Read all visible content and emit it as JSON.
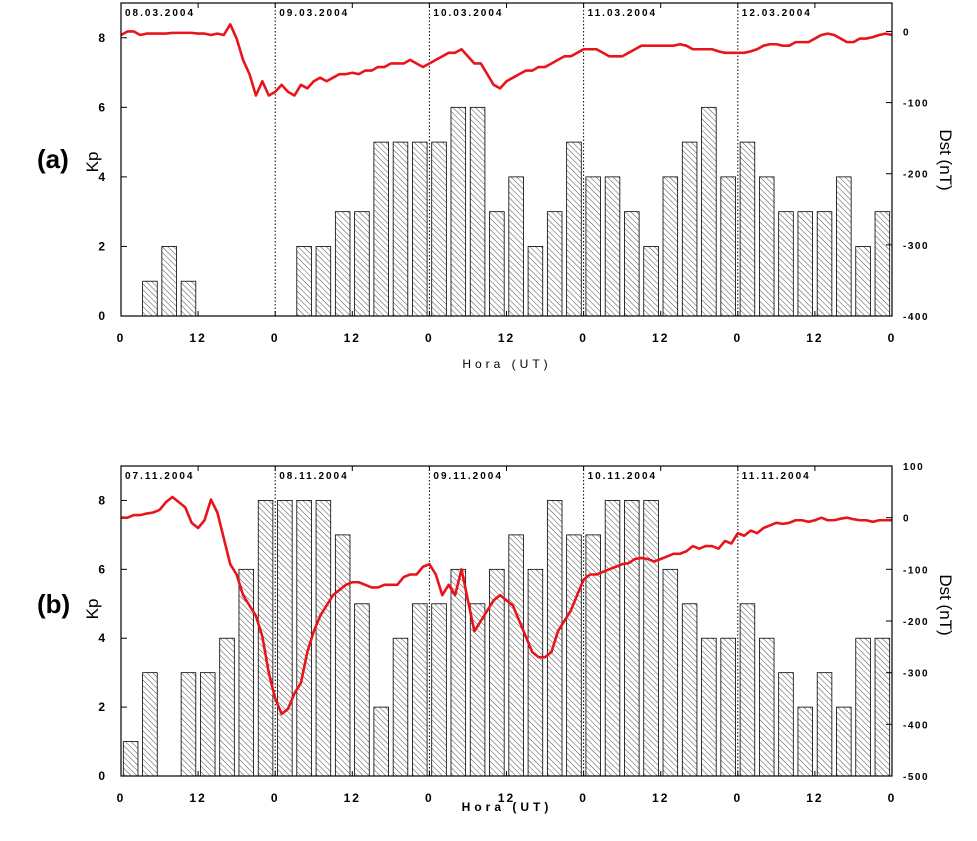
{
  "chart_data": [
    {
      "type": "bar",
      "panel_label": "(a)",
      "ylabel_left": "Kp",
      "ylabel_right": "Dst (nT)",
      "xlabel": "Hora (UT)",
      "x_tick_labels": [
        "0",
        "12",
        "0",
        "12",
        "0",
        "12",
        "0",
        "12",
        "0",
        "12",
        "0"
      ],
      "left_ticks": [
        0,
        2,
        4,
        6,
        8
      ],
      "left_ylim": [
        0,
        9
      ],
      "right_ticks": [
        0,
        -100,
        -200,
        -300,
        -400
      ],
      "right_ylim": [
        -400,
        40
      ],
      "date_labels": [
        "08.03.2004",
        "09.03.2004",
        "10.03.2004",
        "11.03.2004",
        "12.03.2004"
      ],
      "kp_series": {
        "name": "Kp",
        "values": [
          0,
          1,
          2,
          1,
          0,
          0,
          0,
          0,
          0,
          2,
          2,
          3,
          3,
          5,
          5,
          5,
          5,
          6,
          6,
          3,
          4,
          2,
          3,
          5,
          4,
          4,
          3,
          2,
          4,
          5,
          6,
          4,
          5,
          4,
          3,
          3,
          3,
          4,
          2,
          3
        ]
      },
      "dst_series": {
        "name": "Dst",
        "color": "#e8141b",
        "points": [
          [
            0,
            -5
          ],
          [
            2,
            0
          ],
          [
            4,
            0
          ],
          [
            6,
            -5
          ],
          [
            8,
            -3
          ],
          [
            10,
            -3
          ],
          [
            12,
            -3
          ],
          [
            14,
            -3
          ],
          [
            16,
            -2
          ],
          [
            18,
            -2
          ],
          [
            20,
            -2
          ],
          [
            22,
            -2
          ],
          [
            24,
            -3
          ],
          [
            26,
            -3
          ],
          [
            28,
            -5
          ],
          [
            30,
            -3
          ],
          [
            32,
            -5
          ],
          [
            34,
            10
          ],
          [
            36,
            -10
          ],
          [
            38,
            -40
          ],
          [
            40,
            -60
          ],
          [
            42,
            -90
          ],
          [
            44,
            -70
          ],
          [
            46,
            -90
          ],
          [
            48,
            -85
          ],
          [
            50,
            -75
          ],
          [
            52,
            -85
          ],
          [
            54,
            -90
          ],
          [
            56,
            -75
          ],
          [
            58,
            -80
          ],
          [
            60,
            -70
          ],
          [
            62,
            -65
          ],
          [
            64,
            -70
          ],
          [
            66,
            -65
          ],
          [
            68,
            -60
          ],
          [
            70,
            -60
          ],
          [
            72,
            -58
          ],
          [
            74,
            -60
          ],
          [
            76,
            -55
          ],
          [
            78,
            -55
          ],
          [
            80,
            -50
          ],
          [
            82,
            -50
          ],
          [
            84,
            -45
          ],
          [
            86,
            -45
          ],
          [
            88,
            -45
          ],
          [
            90,
            -40
          ],
          [
            92,
            -45
          ],
          [
            94,
            -50
          ],
          [
            96,
            -45
          ],
          [
            98,
            -40
          ],
          [
            100,
            -35
          ],
          [
            102,
            -30
          ],
          [
            104,
            -30
          ],
          [
            106,
            -25
          ],
          [
            108,
            -35
          ],
          [
            110,
            -45
          ],
          [
            112,
            -45
          ],
          [
            114,
            -60
          ],
          [
            116,
            -75
          ],
          [
            118,
            -80
          ],
          [
            120,
            -70
          ],
          [
            122,
            -65
          ],
          [
            124,
            -60
          ],
          [
            126,
            -55
          ],
          [
            128,
            -55
          ],
          [
            130,
            -50
          ],
          [
            132,
            -50
          ],
          [
            134,
            -45
          ],
          [
            136,
            -40
          ],
          [
            138,
            -35
          ],
          [
            140,
            -35
          ],
          [
            142,
            -30
          ],
          [
            144,
            -25
          ],
          [
            146,
            -25
          ],
          [
            148,
            -25
          ],
          [
            150,
            -30
          ],
          [
            152,
            -35
          ],
          [
            154,
            -35
          ],
          [
            156,
            -35
          ],
          [
            158,
            -30
          ],
          [
            160,
            -25
          ],
          [
            162,
            -20
          ],
          [
            164,
            -20
          ],
          [
            166,
            -20
          ],
          [
            168,
            -20
          ],
          [
            170,
            -20
          ],
          [
            172,
            -20
          ],
          [
            174,
            -18
          ],
          [
            176,
            -20
          ],
          [
            178,
            -25
          ],
          [
            180,
            -25
          ],
          [
            182,
            -25
          ],
          [
            184,
            -25
          ],
          [
            186,
            -28
          ],
          [
            188,
            -30
          ],
          [
            190,
            -30
          ],
          [
            192,
            -30
          ],
          [
            194,
            -30
          ],
          [
            196,
            -28
          ],
          [
            198,
            -25
          ],
          [
            200,
            -20
          ],
          [
            202,
            -18
          ],
          [
            204,
            -18
          ],
          [
            206,
            -20
          ],
          [
            208,
            -20
          ],
          [
            210,
            -15
          ],
          [
            212,
            -15
          ],
          [
            214,
            -15
          ],
          [
            216,
            -10
          ],
          [
            218,
            -5
          ],
          [
            220,
            -3
          ],
          [
            222,
            -5
          ],
          [
            224,
            -10
          ],
          [
            226,
            -15
          ],
          [
            228,
            -15
          ],
          [
            230,
            -10
          ],
          [
            232,
            -10
          ],
          [
            234,
            -8
          ],
          [
            236,
            -5
          ],
          [
            238,
            -3
          ],
          [
            240,
            -5
          ]
        ]
      }
    },
    {
      "type": "bar",
      "panel_label": "(b)",
      "ylabel_left": "Kp",
      "ylabel_right": "Dst (nT)",
      "xlabel": "Hora (UT)",
      "x_tick_labels": [
        "0",
        "12",
        "0",
        "12",
        "0",
        "12",
        "0",
        "12",
        "0",
        "12",
        "0"
      ],
      "left_ticks": [
        0,
        2,
        4,
        6,
        8
      ],
      "left_ylim": [
        0,
        9
      ],
      "right_ticks": [
        100,
        0,
        -100,
        -200,
        -300,
        -400,
        -500
      ],
      "right_ylim": [
        -500,
        100
      ],
      "date_labels": [
        "07.11.2004",
        "08.11.2004",
        "09.11.2004",
        "10.11.2004",
        "11.11.2004"
      ],
      "kp_series": {
        "name": "Kp",
        "values": [
          1,
          3,
          0,
          3,
          3,
          4,
          6,
          8,
          8,
          8,
          8,
          7,
          5,
          2,
          4,
          5,
          5,
          6,
          5,
          6,
          7,
          6,
          8,
          7,
          7,
          8,
          8,
          8,
          6,
          5,
          4,
          4,
          5,
          4,
          3,
          2,
          3,
          2,
          4,
          4
        ]
      },
      "dst_series": {
        "name": "Dst",
        "color": "#e8141b",
        "points": [
          [
            0,
            0
          ],
          [
            2,
            0
          ],
          [
            4,
            5
          ],
          [
            6,
            5
          ],
          [
            8,
            8
          ],
          [
            10,
            10
          ],
          [
            12,
            15
          ],
          [
            14,
            30
          ],
          [
            16,
            40
          ],
          [
            18,
            30
          ],
          [
            20,
            20
          ],
          [
            22,
            -10
          ],
          [
            24,
            -20
          ],
          [
            26,
            -5
          ],
          [
            28,
            35
          ],
          [
            30,
            10
          ],
          [
            32,
            -40
          ],
          [
            34,
            -90
          ],
          [
            36,
            -110
          ],
          [
            38,
            -150
          ],
          [
            40,
            -170
          ],
          [
            42,
            -190
          ],
          [
            44,
            -230
          ],
          [
            46,
            -300
          ],
          [
            48,
            -350
          ],
          [
            50,
            -380
          ],
          [
            52,
            -370
          ],
          [
            54,
            -340
          ],
          [
            56,
            -320
          ],
          [
            58,
            -260
          ],
          [
            60,
            -220
          ],
          [
            62,
            -190
          ],
          [
            64,
            -170
          ],
          [
            66,
            -150
          ],
          [
            68,
            -140
          ],
          [
            70,
            -130
          ],
          [
            72,
            -125
          ],
          [
            74,
            -125
          ],
          [
            76,
            -130
          ],
          [
            78,
            -135
          ],
          [
            80,
            -135
          ],
          [
            82,
            -130
          ],
          [
            84,
            -130
          ],
          [
            86,
            -130
          ],
          [
            88,
            -115
          ],
          [
            90,
            -110
          ],
          [
            92,
            -110
          ],
          [
            94,
            -95
          ],
          [
            96,
            -90
          ],
          [
            98,
            -110
          ],
          [
            100,
            -150
          ],
          [
            102,
            -130
          ],
          [
            104,
            -150
          ],
          [
            106,
            -100
          ],
          [
            108,
            -160
          ],
          [
            110,
            -220
          ],
          [
            112,
            -200
          ],
          [
            114,
            -180
          ],
          [
            116,
            -160
          ],
          [
            118,
            -150
          ],
          [
            120,
            -160
          ],
          [
            122,
            -170
          ],
          [
            124,
            -200
          ],
          [
            126,
            -230
          ],
          [
            128,
            -260
          ],
          [
            130,
            -270
          ],
          [
            132,
            -270
          ],
          [
            134,
            -260
          ],
          [
            136,
            -220
          ],
          [
            138,
            -200
          ],
          [
            140,
            -180
          ],
          [
            142,
            -150
          ],
          [
            144,
            -120
          ],
          [
            146,
            -110
          ],
          [
            148,
            -110
          ],
          [
            150,
            -105
          ],
          [
            152,
            -100
          ],
          [
            154,
            -95
          ],
          [
            156,
            -90
          ],
          [
            158,
            -88
          ],
          [
            160,
            -80
          ],
          [
            162,
            -78
          ],
          [
            164,
            -80
          ],
          [
            166,
            -85
          ],
          [
            168,
            -80
          ],
          [
            170,
            -75
          ],
          [
            172,
            -70
          ],
          [
            174,
            -70
          ],
          [
            176,
            -65
          ],
          [
            178,
            -55
          ],
          [
            180,
            -60
          ],
          [
            182,
            -55
          ],
          [
            184,
            -55
          ],
          [
            186,
            -60
          ],
          [
            188,
            -45
          ],
          [
            190,
            -50
          ],
          [
            192,
            -30
          ],
          [
            194,
            -35
          ],
          [
            196,
            -25
          ],
          [
            198,
            -30
          ],
          [
            200,
            -20
          ],
          [
            202,
            -15
          ],
          [
            204,
            -10
          ],
          [
            206,
            -12
          ],
          [
            208,
            -10
          ],
          [
            210,
            -5
          ],
          [
            212,
            -5
          ],
          [
            214,
            -8
          ],
          [
            216,
            -5
          ],
          [
            218,
            0
          ],
          [
            220,
            -5
          ],
          [
            222,
            -5
          ],
          [
            224,
            -2
          ],
          [
            226,
            0
          ],
          [
            228,
            -3
          ],
          [
            230,
            -5
          ],
          [
            232,
            -5
          ],
          [
            234,
            -8
          ],
          [
            236,
            -5
          ],
          [
            238,
            -5
          ],
          [
            240,
            -5
          ]
        ]
      }
    }
  ]
}
